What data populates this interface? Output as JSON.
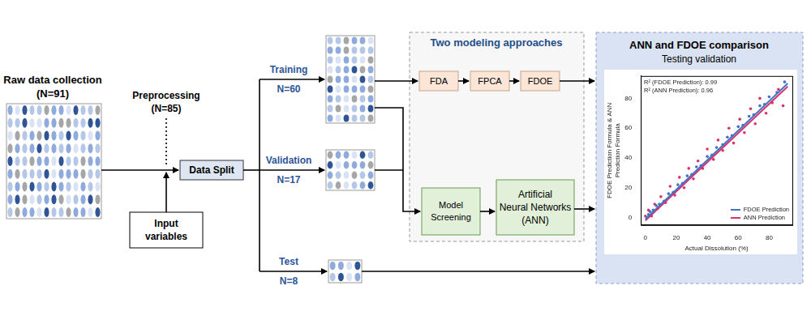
{
  "diagram": {
    "raw": {
      "title": "Raw data collection",
      "count": "(N=91)"
    },
    "preprocessing": {
      "label": "Preprocessing",
      "count": "(N=85)"
    },
    "input": [
      "Input",
      "variables"
    ],
    "split": "Data Split",
    "sets": [
      {
        "label": "Training",
        "count": "N=60"
      },
      {
        "label": "Validation",
        "count": "N=17"
      },
      {
        "label": "Test",
        "count": "N=8"
      }
    ],
    "approaches": {
      "title": "Two modeling approaches",
      "fdoe_steps": [
        "FDA",
        "FPCA",
        "FDOE"
      ],
      "ann_steps": [
        [
          "Model",
          "Screening"
        ],
        [
          "Artificial",
          "Neural Networks",
          "(ANN)"
        ]
      ]
    },
    "comparison": {
      "title": "ANN and FDOE comparison",
      "subtitle": "Testing validation"
    }
  },
  "chart_data": {
    "type": "scatter",
    "x_label": "Actual Dissolution (%)",
    "y_label": [
      "FDOE Prediction Formula & ANN",
      "Prediction Formula"
    ],
    "annotations": [
      "R² (FDOE Prediction): 0.99",
      "R² (ANN Prediction): 0.96"
    ],
    "xlim": [
      -3,
      95
    ],
    "xticks": [
      0,
      20,
      40,
      60,
      80
    ],
    "ylim": [
      -5,
      95
    ],
    "yticks": [
      0,
      20,
      40,
      60,
      80
    ],
    "grid": false,
    "legend": "lower right",
    "series": [
      {
        "name": "FDOE Prediction",
        "color": "#4472c4",
        "marker": "circle",
        "x": [
          1,
          2,
          3,
          5,
          7,
          9,
          12,
          15,
          18,
          21,
          24,
          27,
          30,
          33,
          36,
          40,
          43,
          46,
          50,
          53,
          56,
          60,
          63,
          67,
          70,
          74,
          77,
          80,
          85,
          90
        ],
        "values": [
          0,
          2,
          4,
          5,
          8,
          9,
          11,
          16,
          17,
          22,
          23,
          28,
          29,
          34,
          35,
          41,
          42,
          47,
          49,
          54,
          55,
          61,
          62,
          68,
          69,
          75,
          76,
          81,
          84,
          91
        ],
        "trend": {
          "x": [
            0,
            92
          ],
          "values": [
            -1,
            90
          ]
        }
      },
      {
        "name": "ANN Prediction",
        "color": "#d6336c",
        "marker": "circle",
        "x": [
          0,
          2,
          4,
          6,
          8,
          10,
          13,
          16,
          19,
          22,
          25,
          28,
          31,
          34,
          37,
          40,
          44,
          47,
          50,
          54,
          57,
          61,
          64,
          68,
          71,
          74,
          78,
          82,
          86,
          89
        ],
        "values": [
          1,
          5,
          1,
          9,
          6,
          14,
          10,
          21,
          15,
          27,
          20,
          33,
          26,
          38,
          33,
          46,
          39,
          52,
          45,
          60,
          50,
          66,
          57,
          73,
          63,
          80,
          70,
          77,
          86,
          75
        ],
        "trend": {
          "x": [
            0,
            92
          ],
          "values": [
            -2,
            88
          ]
        }
      }
    ]
  }
}
